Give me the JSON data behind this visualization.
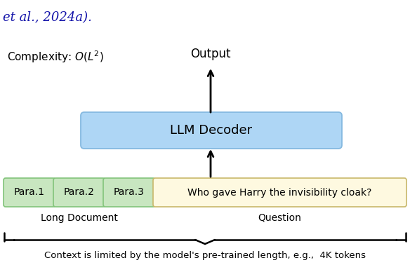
{
  "title_text": "et al., 2024a).",
  "title_color": "#1515aa",
  "complexity_text": "Complexity: $\\mathit{O}(\\mathit{L}^2)$",
  "output_text": "Output",
  "llm_decoder_text": "LLM Decoder",
  "llm_decoder_color": "#aed6f5",
  "llm_decoder_edgecolor": "#85b9e0",
  "para_boxes": [
    "Para.1",
    "Para.2",
    "Para.3"
  ],
  "para_color": "#c8e6c0",
  "para_edgecolor": "#82c47a",
  "question_text": "Who gave Harry the invisibility cloak?",
  "question_color": "#fef9e0",
  "question_edgecolor": "#c8b86a",
  "long_doc_label": "Long Document",
  "question_label": "Question",
  "bottom_text": "Context is limited by the model's pre-trained length, e.g.,  4K tokens",
  "bg_color": "#ffffff"
}
